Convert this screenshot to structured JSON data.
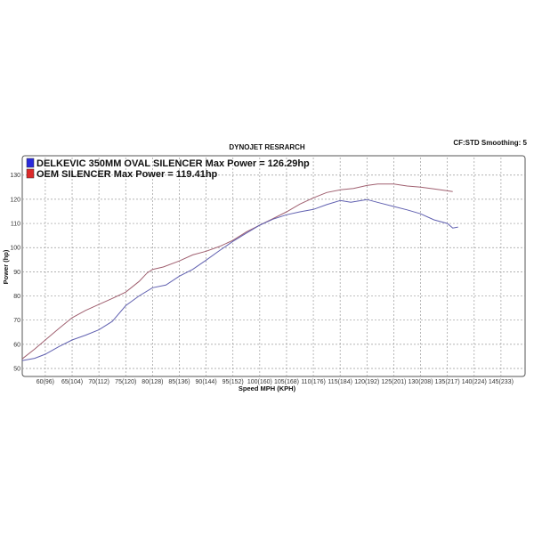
{
  "chart_data": {
    "type": "line",
    "title": "DYNOJET RESRARCH",
    "subtitle": "CF:STD Smoothing: 5",
    "xlabel": "Speed MPH (KPH)",
    "ylabel": "Power (hp)",
    "xlim": [
      55.7,
      149.5
    ],
    "ylim": [
      46.7,
      138
    ],
    "grid": true,
    "legend_placement": "top-left",
    "x_ticks": [
      {
        "v": 60,
        "label": "60(96)"
      },
      {
        "v": 65,
        "label": "65(104)"
      },
      {
        "v": 70,
        "label": "70(112)"
      },
      {
        "v": 75,
        "label": "75(120)"
      },
      {
        "v": 80,
        "label": "80(128)"
      },
      {
        "v": 85,
        "label": "85(136)"
      },
      {
        "v": 90,
        "label": "90(144)"
      },
      {
        "v": 95,
        "label": "95(152)"
      },
      {
        "v": 100,
        "label": "100(160)"
      },
      {
        "v": 105,
        "label": "105(168)"
      },
      {
        "v": 110,
        "label": "110(176)"
      },
      {
        "v": 115,
        "label": "115(184)"
      },
      {
        "v": 120,
        "label": "120(192)"
      },
      {
        "v": 125,
        "label": "125(201)"
      },
      {
        "v": 130,
        "label": "130(208)"
      },
      {
        "v": 135,
        "label": "135(217)"
      },
      {
        "v": 140,
        "label": "140(224)"
      },
      {
        "v": 145,
        "label": "145(233)"
      }
    ],
    "y_ticks": [
      50,
      60,
      70,
      80,
      90,
      100,
      110,
      120,
      130
    ],
    "legend": [
      {
        "label": "DELKEVIC 350MM OVAL SILENCER  Max Power = 126.29hp",
        "color": "#2a2adc"
      },
      {
        "label": "OEM SILENCER Max Power = 119.41hp",
        "color": "#dc2a2a"
      }
    ],
    "series": [
      {
        "color": "#a06070",
        "points": [
          [
            55.7,
            54
          ],
          [
            58,
            58
          ],
          [
            60,
            61.8
          ],
          [
            62.5,
            66.5
          ],
          [
            65,
            71
          ],
          [
            67.5,
            74
          ],
          [
            70,
            76.5
          ],
          [
            72.5,
            79
          ],
          [
            75,
            81.6
          ],
          [
            77.5,
            86
          ],
          [
            79,
            89.5
          ],
          [
            80,
            91
          ],
          [
            82,
            92
          ],
          [
            85,
            94.5
          ],
          [
            87.5,
            97
          ],
          [
            90,
            98.5
          ],
          [
            92.5,
            100.5
          ],
          [
            95,
            103
          ],
          [
            97.5,
            106.5
          ],
          [
            100,
            109.3
          ],
          [
            102.5,
            112
          ],
          [
            105,
            114.8
          ],
          [
            107.5,
            118
          ],
          [
            110,
            120.6
          ],
          [
            112.5,
            122.8
          ],
          [
            115,
            123.9
          ],
          [
            117.5,
            124.5
          ],
          [
            120,
            125.7
          ],
          [
            122,
            126.3
          ],
          [
            125,
            126.3
          ],
          [
            127.5,
            125.5
          ],
          [
            130,
            125
          ],
          [
            132.5,
            124.3
          ],
          [
            135,
            123.5
          ],
          [
            136,
            123.2
          ]
        ]
      },
      {
        "color": "#6060b0",
        "points": [
          [
            55.7,
            53.3
          ],
          [
            58,
            54.2
          ],
          [
            60,
            55.9
          ],
          [
            62.5,
            59
          ],
          [
            65,
            61.8
          ],
          [
            67.5,
            63.8
          ],
          [
            70,
            66
          ],
          [
            72.5,
            69.5
          ],
          [
            75,
            76
          ],
          [
            77.5,
            80
          ],
          [
            80,
            83.4
          ],
          [
            82.5,
            84.5
          ],
          [
            85,
            88.2
          ],
          [
            87.5,
            91
          ],
          [
            90,
            94.8
          ],
          [
            92.5,
            98.8
          ],
          [
            95,
            102.6
          ],
          [
            97.5,
            106
          ],
          [
            100,
            109.3
          ],
          [
            102.5,
            111.8
          ],
          [
            105,
            113.6
          ],
          [
            107.5,
            114.8
          ],
          [
            110,
            115.8
          ],
          [
            112.5,
            117.8
          ],
          [
            115,
            119.5
          ],
          [
            117,
            118.8
          ],
          [
            120,
            119.9
          ],
          [
            122.5,
            118.4
          ],
          [
            125,
            117
          ],
          [
            127.5,
            115.6
          ],
          [
            130,
            114
          ],
          [
            132.5,
            111.5
          ],
          [
            135,
            110
          ],
          [
            136,
            108.1
          ],
          [
            137,
            108.5
          ]
        ]
      }
    ]
  }
}
